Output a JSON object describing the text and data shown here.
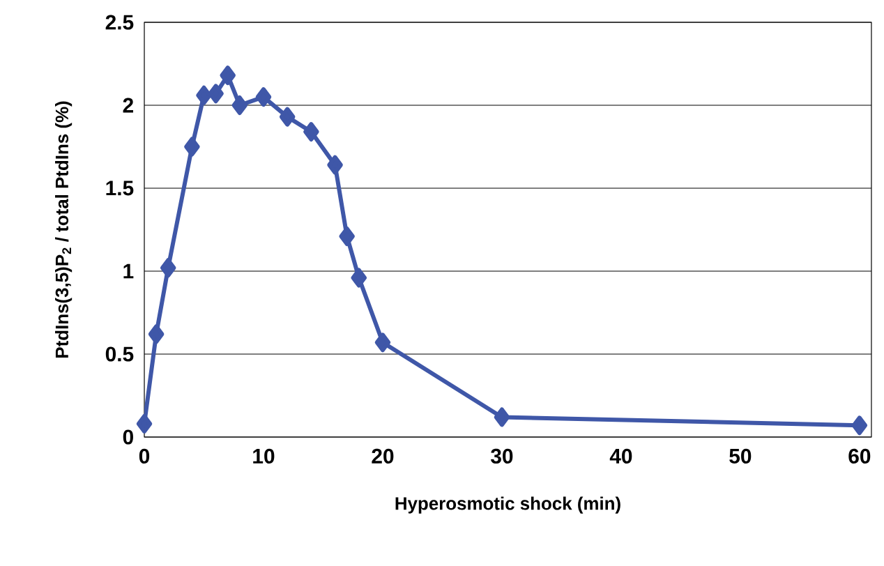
{
  "chart_data": {
    "type": "line",
    "xlabel": "Hyperosmotic shock (min)",
    "ylabel": "PtdIns(3,5)P$_{2}$ / total PtdIns (%)",
    "x": [
      0,
      1,
      2,
      4,
      5,
      6,
      7,
      8,
      10,
      12,
      14,
      16,
      17,
      18,
      20,
      30,
      60
    ],
    "series": [
      {
        "color": "#3f57a8",
        "values": [
          0.08,
          0.62,
          1.02,
          1.75,
          2.06,
          2.07,
          2.18,
          2.0,
          2.05,
          1.93,
          1.84,
          1.64,
          1.21,
          0.96,
          0.57,
          0.12,
          0.07
        ]
      }
    ],
    "xlim": [
      0,
      61
    ],
    "xticks": [
      0,
      10,
      20,
      30,
      40,
      50,
      60
    ],
    "ylim": [
      0,
      2.5
    ],
    "yticks": [
      0,
      0.5,
      1,
      1.5,
      2,
      2.5
    ],
    "grid": "y",
    "marker": "diamond",
    "line_style": "solid",
    "legend": false
  }
}
